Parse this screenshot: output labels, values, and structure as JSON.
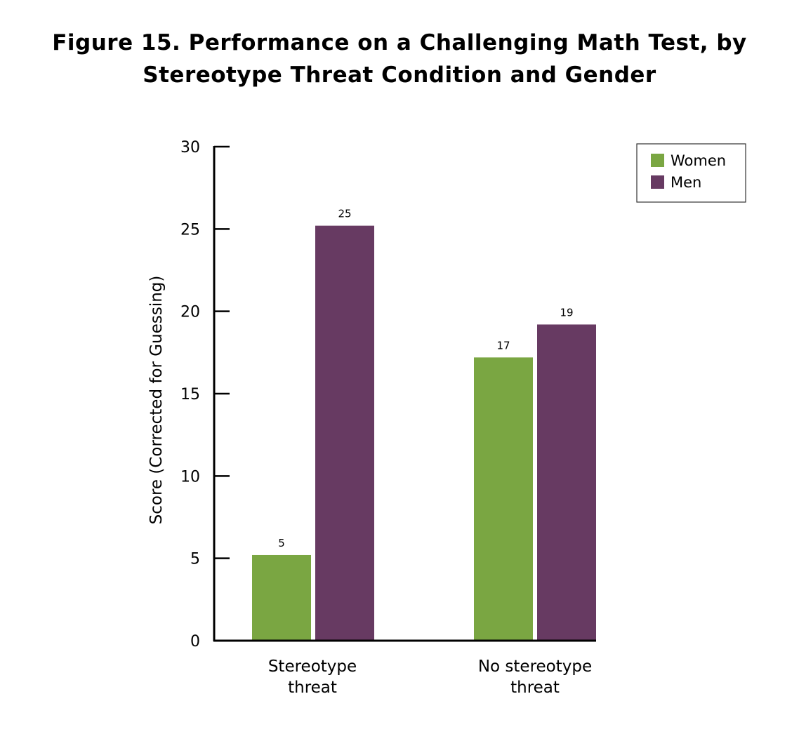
{
  "chart_data": {
    "type": "bar",
    "title_lines": [
      "Figure 15. Performance on a Challenging Math Test, by",
      "Stereotype Threat Condition and Gender"
    ],
    "categories": [
      [
        "Stereotype",
        "threat"
      ],
      [
        "No stereotype",
        "threat"
      ]
    ],
    "series": [
      {
        "name": "Women",
        "color": "#7aa642",
        "values": [
          5,
          17
        ]
      },
      {
        "name": "Men",
        "color": "#673a62",
        "values": [
          25,
          19
        ]
      }
    ],
    "bar_heights": [
      [
        5.2,
        17.2
      ],
      [
        25.2,
        19.2
      ]
    ],
    "ylabel": "Score (Corrected for Guessing)",
    "xlabel": "",
    "ylim": [
      0,
      30
    ],
    "yticks": [
      0,
      5,
      10,
      15,
      20,
      25,
      30
    ],
    "grid": false,
    "legend_position": "top-right"
  }
}
